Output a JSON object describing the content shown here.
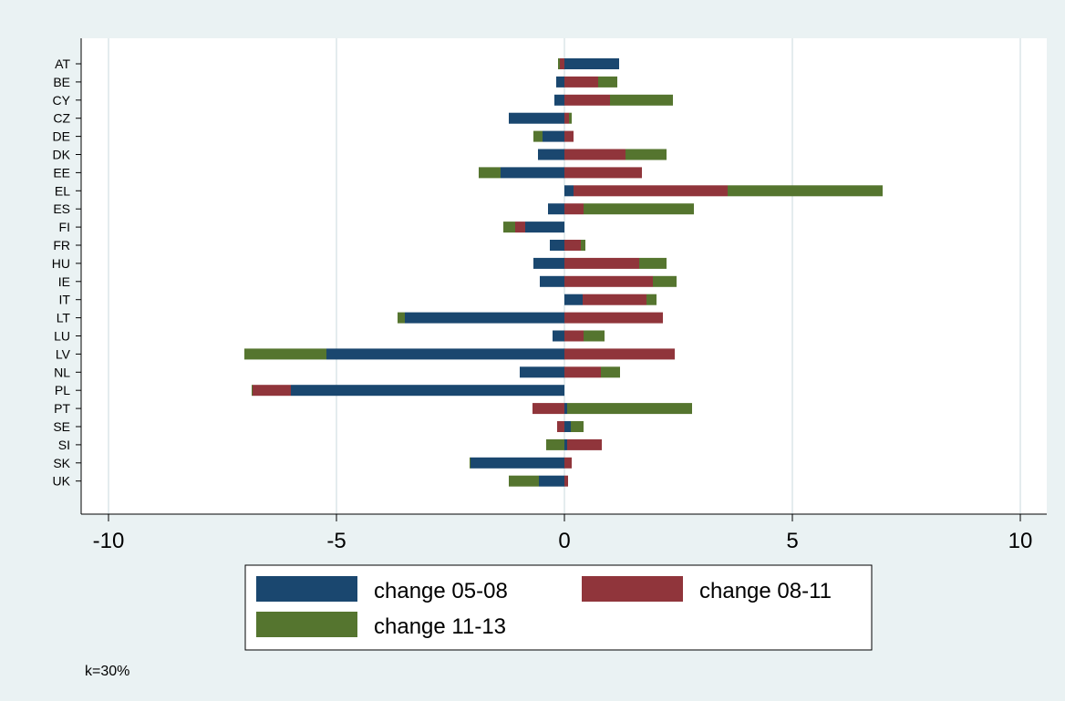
{
  "chart_data": {
    "type": "bar",
    "orientation": "horizontal",
    "stacked": "diverging",
    "categories": [
      "AT",
      "BE",
      "CY",
      "CZ",
      "DE",
      "DK",
      "EE",
      "EL",
      "ES",
      "FI",
      "FR",
      "HU",
      "IE",
      "IT",
      "LT",
      "LU",
      "LV",
      "NL",
      "PL",
      "PT",
      "SE",
      "SI",
      "SK",
      "UK"
    ],
    "series": [
      {
        "name": "change 05-08",
        "color": "#1a476f",
        "values": [
          1.2,
          -0.18,
          -0.22,
          -1.22,
          -0.48,
          -0.58,
          -1.4,
          0.2,
          -0.36,
          -0.86,
          -0.32,
          -0.68,
          -0.54,
          0.4,
          -3.5,
          -0.26,
          -5.22,
          -0.98,
          -6.0,
          0.06,
          0.14,
          0.06,
          -2.06,
          -0.56
        ]
      },
      {
        "name": "change 08-11",
        "color": "#90353b",
        "values": [
          -0.1,
          0.74,
          1.0,
          0.1,
          0.2,
          1.34,
          1.7,
          3.38,
          0.42,
          -0.22,
          0.36,
          1.64,
          1.94,
          1.4,
          2.16,
          0.42,
          2.42,
          0.8,
          -0.84,
          -0.7,
          -0.16,
          0.76,
          0.16,
          0.08
        ]
      },
      {
        "name": "change 11-13",
        "color": "#55752f",
        "values": [
          -0.04,
          0.42,
          1.38,
          0.06,
          -0.2,
          0.9,
          -0.48,
          3.4,
          2.42,
          -0.26,
          0.1,
          0.6,
          0.52,
          0.22,
          -0.16,
          0.46,
          -1.8,
          0.42,
          -0.02,
          2.74,
          0.28,
          -0.4,
          -0.02,
          -0.66
        ]
      }
    ],
    "xlim": [
      -10,
      10
    ],
    "xticks": [
      -10,
      -5,
      0,
      5,
      10
    ],
    "grid": true,
    "legend_position": "bottom",
    "title": "",
    "xlabel": "",
    "ylabel": "",
    "note": "k=30%"
  }
}
